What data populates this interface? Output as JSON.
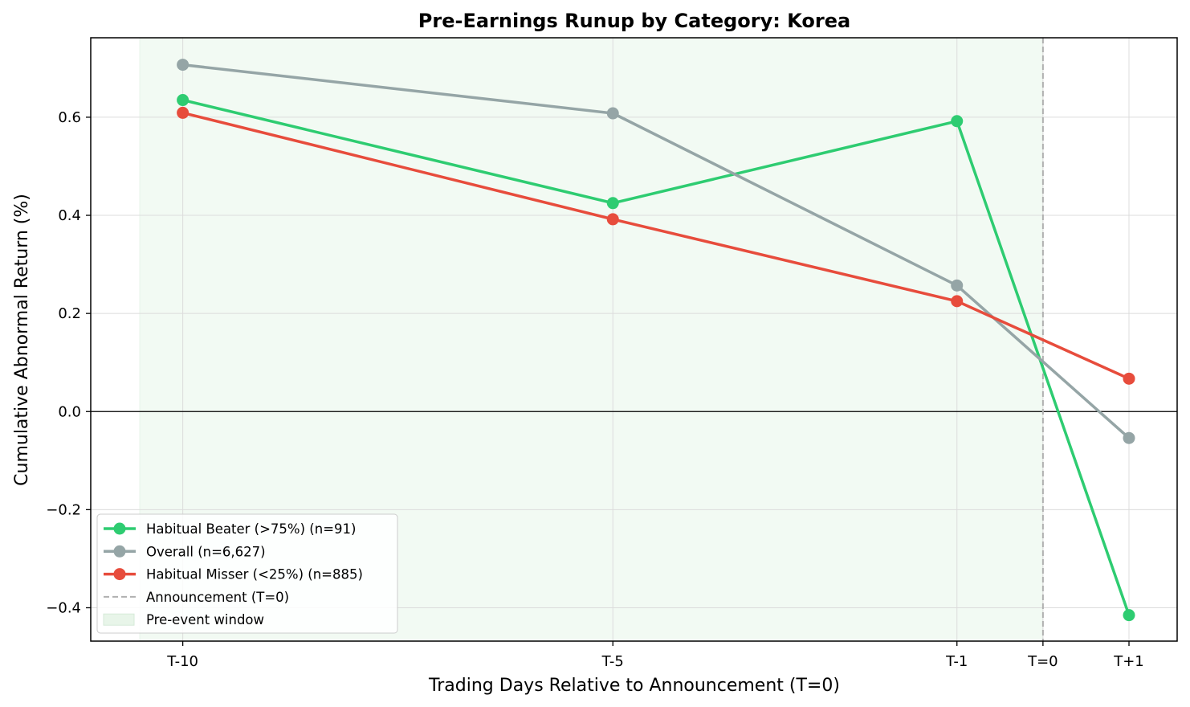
{
  "chart_data": {
    "type": "line",
    "title": "Pre-Earnings Runup by Category: Korea",
    "xlabel": "Trading Days Relative to Announcement (T=0)",
    "ylabel": "Cumulative Abnormal Return (%)",
    "x": [
      -10,
      -5,
      -1,
      1
    ],
    "xlim": [
      -11.07,
      1.56
    ],
    "ylim": [
      -0.468,
      0.762
    ],
    "xticks": [
      {
        "value": -10,
        "label": "T-10"
      },
      {
        "value": -5,
        "label": "T-5"
      },
      {
        "value": -1,
        "label": "T-1"
      },
      {
        "value": 0,
        "label": "T=0"
      },
      {
        "value": 1,
        "label": "T+1"
      }
    ],
    "yticks": [
      {
        "value": 0.6,
        "label": "0.6"
      },
      {
        "value": 0.4,
        "label": "0.4"
      },
      {
        "value": 0.2,
        "label": "0.2"
      },
      {
        "value": 0.0,
        "label": "0.0"
      },
      {
        "value": -0.2,
        "label": "−0.2"
      },
      {
        "value": -0.4,
        "label": "−0.4"
      }
    ],
    "grid": true,
    "legend_position": "lower-left",
    "series": [
      {
        "name": "Habitual Beater (>75%) (n=91)",
        "color": "#2ecc71",
        "values": [
          0.635,
          0.425,
          0.592,
          -0.415
        ]
      },
      {
        "name": "Overall (n=6,627)",
        "color": "#95a5a6",
        "values": [
          0.707,
          0.608,
          0.257,
          -0.054
        ]
      },
      {
        "name": "Habitual Misser (<25%) (n=885)",
        "color": "#e74c3c",
        "values": [
          0.609,
          0.392,
          0.225,
          0.067
        ]
      }
    ],
    "announcement": {
      "x": 0,
      "label": "Announcement (T=0)",
      "color": "#b0b0b0"
    },
    "pre_event_window": {
      "x_start": -10.5,
      "x_end": 0,
      "label": "Pre-event window",
      "color": "#e8f5e9"
    },
    "zero_line": 0
  }
}
